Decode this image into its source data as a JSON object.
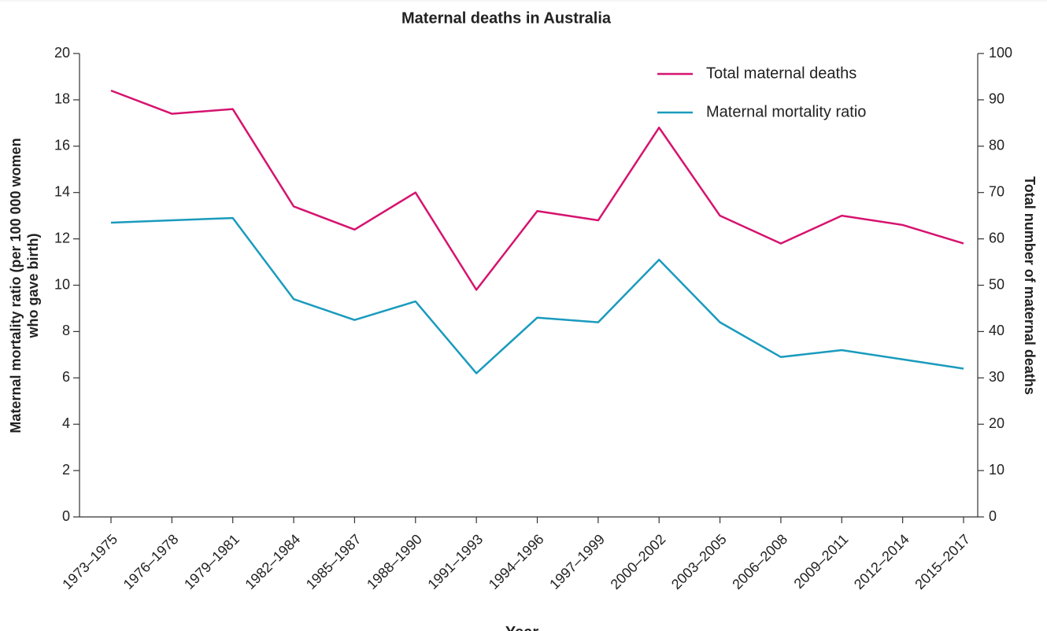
{
  "chart_data": {
    "type": "line",
    "title": "Maternal deaths in Australia",
    "x_label": "Year",
    "y_label": [
      "Maternal mortality ratio (per 100 000 women",
      "who gave birth)"
    ],
    "y2_label": "Total number of maternal deaths",
    "categories": [
      "1973–1975",
      "1976–1978",
      "1979–1981",
      "1982–1984",
      "1985–1987",
      "1988–1990",
      "1991–1993",
      "1994–1996",
      "1997–1999",
      "2000–2002",
      "2003–2005",
      "2006–2008",
      "2009–2011",
      "2012–2014",
      "2015–2017"
    ],
    "series": [
      {
        "name": "Total maternal deaths",
        "color": "#d6136f",
        "axis": "y2",
        "values": [
          92,
          87,
          88,
          67,
          62,
          70,
          49,
          66,
          64,
          84,
          65,
          59,
          65,
          63,
          59
        ]
      },
      {
        "name": "Maternal mortality ratio",
        "color": "#1a9bbd",
        "values": [
          12.7,
          12.8,
          12.9,
          9.4,
          8.5,
          9.3,
          6.2,
          8.6,
          8.4,
          11.1,
          8.4,
          6.9,
          7.2,
          6.8,
          6.4
        ]
      }
    ],
    "ylim": [
      0,
      20
    ],
    "yticks": [
      0,
      2,
      4,
      6,
      8,
      10,
      12,
      14,
      16,
      18,
      20
    ],
    "y2lim": [
      0,
      100
    ],
    "y2ticks": [
      0,
      10,
      20,
      30,
      40,
      50,
      60,
      70,
      80,
      90,
      100
    ],
    "legend": "top-right",
    "grid": false
  }
}
